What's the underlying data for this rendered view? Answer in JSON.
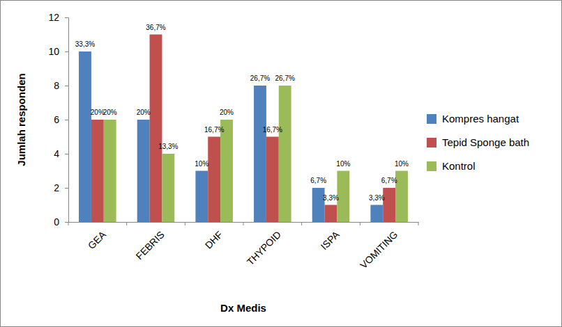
{
  "chart_data": {
    "type": "bar",
    "x_label": "Dx Medis",
    "y_label": "Jumlah responden",
    "categories": [
      "GEA",
      "FEBRIS",
      "DHF",
      "THYPOID",
      "ISPA",
      "VOMITING"
    ],
    "series": [
      {
        "name": "Kompres hangat",
        "color": "#4f81bd",
        "values": [
          10,
          6,
          3,
          8,
          2,
          1
        ],
        "percent_labels": [
          "33,3%",
          "20%",
          "10%",
          "26,7%",
          "6,7%",
          "3,3%"
        ]
      },
      {
        "name": "Tepid Sponge bath",
        "color": "#c0504d",
        "values": [
          6,
          11,
          5,
          5,
          1,
          2
        ],
        "percent_labels": [
          "20%",
          "36,7%",
          "16,7%",
          "16,7%",
          "3,3%",
          "6,7%"
        ]
      },
      {
        "name": "Kontrol",
        "color": "#9bbb59",
        "values": [
          6,
          4,
          6,
          8,
          3,
          3
        ],
        "percent_labels": [
          "20%",
          "13,3%",
          "20%",
          "26,7%",
          "10%",
          "10%"
        ]
      }
    ],
    "ylim": [
      0,
      12
    ],
    "yticks": [
      0,
      2,
      4,
      6,
      8,
      10,
      12
    ],
    "grid": false,
    "legend": "right"
  }
}
